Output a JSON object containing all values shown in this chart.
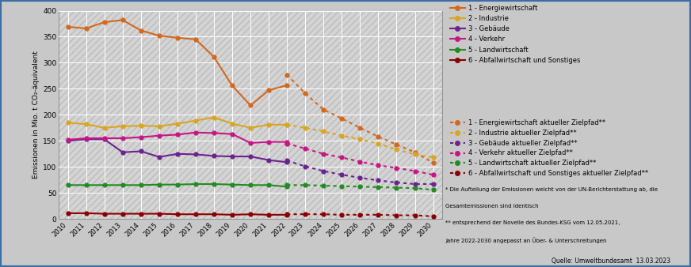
{
  "years_actual": [
    2010,
    2011,
    2012,
    2013,
    2014,
    2015,
    2016,
    2017,
    2018,
    2019,
    2020,
    2021,
    2022
  ],
  "years_target": [
    2022,
    2023,
    2024,
    2025,
    2026,
    2027,
    2028,
    2029,
    2030
  ],
  "energiewirtschaft_actual": [
    369,
    366,
    378,
    382,
    362,
    352,
    348,
    345,
    311,
    256,
    218,
    247,
    257
  ],
  "industrie_actual": [
    185,
    182,
    175,
    178,
    179,
    178,
    183,
    189,
    195,
    183,
    175,
    181,
    181
  ],
  "gebaeude_actual": [
    150,
    153,
    153,
    128,
    130,
    119,
    125,
    124,
    121,
    120,
    120,
    113,
    109
  ],
  "verkehr_actual": [
    152,
    155,
    155,
    155,
    157,
    160,
    162,
    166,
    165,
    163,
    146,
    148,
    148
  ],
  "landwirtschaft_actual": [
    65,
    65,
    65,
    65,
    65,
    66,
    66,
    67,
    67,
    66,
    65,
    65,
    62
  ],
  "abfallwirtschaft_actual": [
    11,
    11,
    10,
    10,
    10,
    10,
    9,
    9,
    9,
    8,
    9,
    8,
    8
  ],
  "energiewirtschaft_target": [
    277,
    241,
    210,
    193,
    175,
    158,
    143,
    128,
    108
  ],
  "industrie_target": [
    181,
    175,
    168,
    160,
    153,
    145,
    133,
    124,
    118
  ],
  "gebaeude_target": [
    112,
    101,
    92,
    85,
    79,
    74,
    70,
    67,
    67
  ],
  "verkehr_target": [
    145,
    135,
    125,
    118,
    110,
    103,
    98,
    92,
    85
  ],
  "landwirtschaft_target": [
    65,
    65,
    64,
    63,
    62,
    61,
    60,
    59,
    56
  ],
  "abfallwirtschaft_target": [
    9,
    9,
    9,
    8,
    8,
    8,
    7,
    7,
    5
  ],
  "colors": {
    "energiewirtschaft": "#D2691E",
    "industrie": "#DAA520",
    "gebaeude": "#6B238E",
    "verkehr": "#C71585",
    "landwirtschaft": "#228B22",
    "abfallwirtschaft": "#8B0000"
  },
  "legend_solid": [
    "1 - Energiewirtschaft",
    "2 - Industrie",
    "3 - Gebäude",
    "4 - Verkehr",
    "5 - Landwirtschaft",
    "6 - Abfallwirtschaft und Sonstiges"
  ],
  "legend_dotted": [
    "1 - Energiewirtschaft aktueller Zielpfad**",
    "2 - Industrie aktueller Zielpfad**",
    "3 - Gebäude aktueller Zielpfad**",
    "4 - Verkehr aktueller Zielpfad**",
    "5 - Landwirtschaft aktueller Zielpfad**",
    "6 - Abfallwirtschaft und Sonstiges aktueller Zielpfad**"
  ],
  "ylabel": "Emissionen in Mio. t CO₂-äquivalent",
  "ylim": [
    0,
    400
  ],
  "yticks": [
    0,
    50,
    100,
    150,
    200,
    250,
    300,
    350,
    400
  ],
  "footnote1": "* Die Aufteilung der Emissionen weicht von der UN-Berichterstattung ab, die",
  "footnote2": "Gesamtemissionen sind identisch",
  "footnote3": "** entsprechend der Novelle des Bundes-KSG vom 12.05.2021,",
  "footnote4": "Jahre 2022-2030 angepasst an Über- & Unterschreitungen",
  "source": "Quelle: Umweltbundesamt  13.03.2023",
  "fig_bg": "#c8c8c8",
  "plot_bg": "#d4d4d4",
  "border_color": "#3a6ea5",
  "hatch_color": "#bcbcbc"
}
